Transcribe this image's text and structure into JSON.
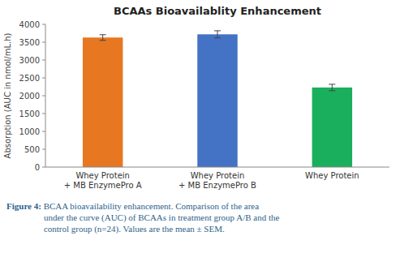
{
  "chart_data": {
    "type": "bar",
    "title": "BCAAs Bioavailablity Enhancement",
    "categories": [
      "Whey Protein\n+ MB EnzymePro A",
      "Whey Protein\n+ MB EnzymePro B",
      "Whey Protein"
    ],
    "values": [
      3630,
      3720,
      2230
    ],
    "errors": [
      80,
      100,
      90
    ],
    "colors": [
      "#E87722",
      "#4472C4",
      "#1AAF5D"
    ],
    "ylabel": "Absorption (AUC in nmol/mL.h)",
    "ylim": [
      0,
      4000
    ],
    "yticks": [
      0,
      500,
      1000,
      1500,
      2000,
      2500,
      3000,
      3500,
      4000
    ],
    "grid": false,
    "caption_label": "Figure 4:",
    "caption": " BCAA bioavailability enhancement. Comparison of the area\nunder the curve (AUC) of BCAAs in treatment group A/B and the\ncontrol group (n=24). Values are the mean ± SEM."
  }
}
